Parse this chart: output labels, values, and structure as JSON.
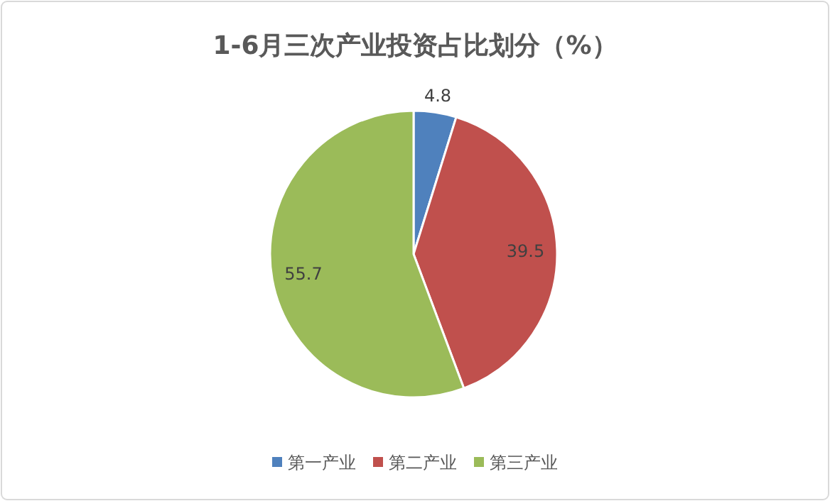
{
  "chart_data": {
    "type": "pie",
    "title": "1-6月三次产业投资占比划分（%）",
    "categories": [
      "第一产业",
      "第二产业",
      "第三产业"
    ],
    "values": [
      4.8,
      39.5,
      55.7
    ],
    "colors": [
      "#4f81bd",
      "#c0504d",
      "#9bbb59"
    ],
    "data_labels": true,
    "legend": "bottom"
  }
}
